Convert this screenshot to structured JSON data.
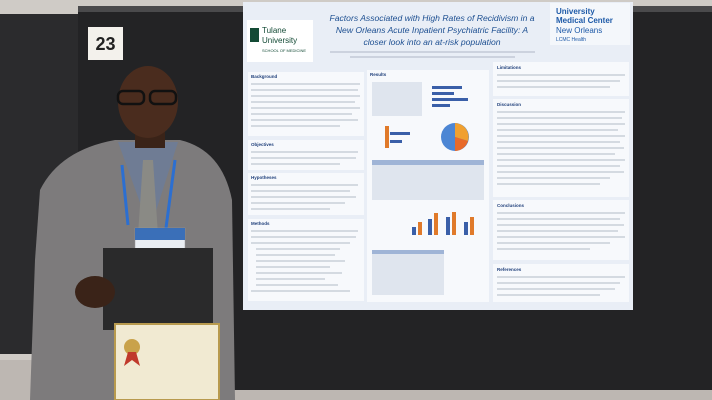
{
  "board_number": "23",
  "poster": {
    "left_logo": [
      "Tulane",
      "University",
      "SCHOOL OF MEDICINE"
    ],
    "title_lines": [
      "Factors Associated with High Rates of Recidivism in a",
      "New Orleans Acute Inpatient Psychiatric Facility: A",
      "closer look into an at-risk population"
    ],
    "right_logo": [
      "University",
      "Medical Center",
      "New Orleans",
      "LCMC Health"
    ],
    "sections": {
      "background": "Background",
      "objectives": "Objectives",
      "hypotheses": "Hypotheses",
      "methods": "Methods",
      "results": "Results",
      "limitations": "Limitations",
      "discussion": "Discussion",
      "conclusions": "Conclusions",
      "references": "References"
    }
  }
}
